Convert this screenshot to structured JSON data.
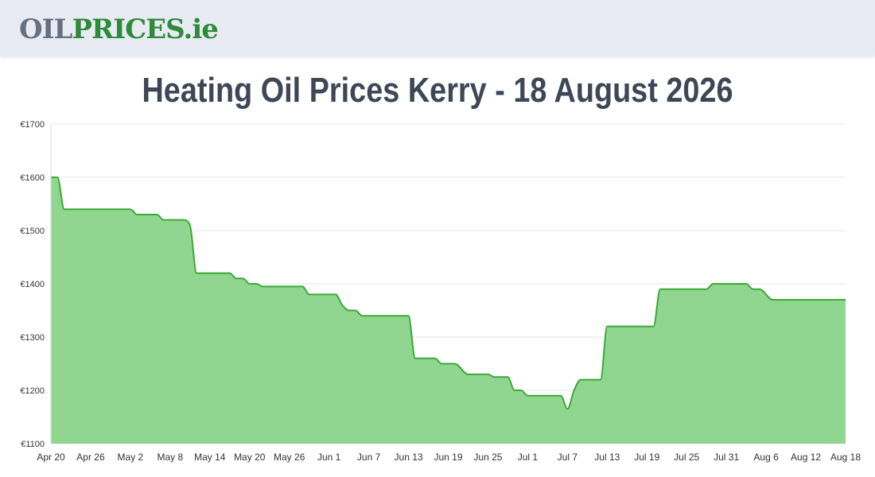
{
  "site": {
    "logo_part1": "OIL",
    "logo_part2": "PRICES",
    "logo_part3": ".ie"
  },
  "chart_data": {
    "type": "area",
    "title": "Heating Oil Prices Kerry - 18 August 2026",
    "xlabel": "",
    "ylabel": "",
    "ylim": [
      1100,
      1700
    ],
    "y_ticks": [
      "€1100",
      "€1200",
      "€1300",
      "€1400",
      "€1500",
      "€1600",
      "€1700"
    ],
    "x_ticks": [
      "Apr 20",
      "Apr 26",
      "May 2",
      "May 8",
      "May 14",
      "May 20",
      "May 26",
      "Jun 1",
      "Jun 7",
      "Jun 13",
      "Jun 19",
      "Jun 25",
      "Jul 1",
      "Jul 7",
      "Jul 13",
      "Jul 19",
      "Jul 25",
      "Jul 31",
      "Aug 6",
      "Aug 12",
      "Aug 18"
    ],
    "x_start": "Apr 20",
    "x_end": "Aug 18",
    "grid": "horizontal",
    "line_color": "#3aaa35",
    "fill_color": "#90d690",
    "series": [
      {
        "values": [
          [
            "Apr 20",
            1600
          ],
          [
            "Apr 21",
            1600
          ],
          [
            "Apr 22",
            1540
          ],
          [
            "Apr 23",
            1540
          ],
          [
            "May 1",
            1540
          ],
          [
            "May 2",
            1540
          ],
          [
            "May 3",
            1530
          ],
          [
            "May 6",
            1530
          ],
          [
            "May 7",
            1520
          ],
          [
            "May 10",
            1520
          ],
          [
            "May 11",
            1510
          ],
          [
            "May 12",
            1420
          ],
          [
            "May 17",
            1420
          ],
          [
            "May 18",
            1410
          ],
          [
            "May 19",
            1410
          ],
          [
            "May 20",
            1400
          ],
          [
            "May 21",
            1400
          ],
          [
            "May 22",
            1395
          ],
          [
            "May 28",
            1395
          ],
          [
            "May 29",
            1380
          ],
          [
            "Jun 2",
            1380
          ],
          [
            "Jun 3",
            1360
          ],
          [
            "Jun 4",
            1350
          ],
          [
            "Jun 5",
            1350
          ],
          [
            "Jun 6",
            1340
          ],
          [
            "Jun 13",
            1340
          ],
          [
            "Jun 14",
            1260
          ],
          [
            "Jun 17",
            1260
          ],
          [
            "Jun 18",
            1250
          ],
          [
            "Jun 20",
            1250
          ],
          [
            "Jun 22",
            1230
          ],
          [
            "Jun 25",
            1230
          ],
          [
            "Jun 26",
            1225
          ],
          [
            "Jun 28",
            1225
          ],
          [
            "Jun 29",
            1200
          ],
          [
            "Jun 30",
            1200
          ],
          [
            "Jul 1",
            1190
          ],
          [
            "Jul 6",
            1190
          ],
          [
            "Jul 7",
            1165
          ],
          [
            "Jul 8",
            1200
          ],
          [
            "Jul 9",
            1220
          ],
          [
            "Jul 12",
            1220
          ],
          [
            "Jul 13",
            1320
          ],
          [
            "Jul 20",
            1320
          ],
          [
            "Jul 21",
            1390
          ],
          [
            "Jul 28",
            1390
          ],
          [
            "Jul 29",
            1400
          ],
          [
            "Aug 3",
            1400
          ],
          [
            "Aug 4",
            1390
          ],
          [
            "Aug 5",
            1390
          ],
          [
            "Aug 7",
            1370
          ],
          [
            "Aug 18",
            1370
          ]
        ]
      }
    ]
  }
}
